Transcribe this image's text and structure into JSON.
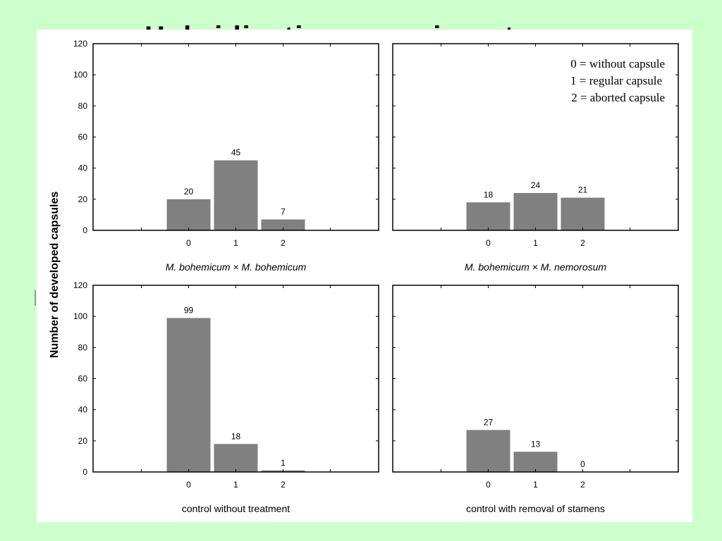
{
  "slide": {
    "title_fragment": "Hybridization experiments"
  },
  "colors": {
    "background": "#ccffcc",
    "panel": "#ffffff",
    "bar": "#808080"
  },
  "ylabel": "Number of developed capsules",
  "legend": [
    "0 = without capsule",
    "1 = regular capsule",
    "2 = aborted capsule"
  ],
  "chart_data": [
    {
      "type": "bar",
      "categories": [
        "0",
        "1",
        "2"
      ],
      "values": [
        20,
        45,
        7
      ],
      "xlabel": "M. bohemicum × M. bohemicum",
      "xlabel_italic": true,
      "ylim": [
        0,
        120
      ],
      "yticks": [
        "0",
        "20",
        "40",
        "60",
        "80",
        "100",
        "120"
      ]
    },
    {
      "type": "bar",
      "categories": [
        "0",
        "1",
        "2"
      ],
      "values": [
        18,
        24,
        21
      ],
      "xlabel": "M. bohemicum ×  M. nemorosum",
      "xlabel_italic": true,
      "ylim": [
        0,
        120
      ],
      "yticks": []
    },
    {
      "type": "bar",
      "categories": [
        "0",
        "1",
        "2"
      ],
      "values": [
        99,
        18,
        1
      ],
      "xlabel": "control without treatment",
      "xlabel_italic": false,
      "ylim": [
        0,
        120
      ],
      "yticks": [
        "0",
        "20",
        "40",
        "60",
        "80",
        "100",
        "120"
      ]
    },
    {
      "type": "bar",
      "categories": [
        "0",
        "1",
        "2"
      ],
      "values": [
        27,
        13,
        0
      ],
      "xlabel": "control with removal of stamens",
      "xlabel_italic": false,
      "ylim": [
        0,
        120
      ],
      "yticks": []
    }
  ]
}
